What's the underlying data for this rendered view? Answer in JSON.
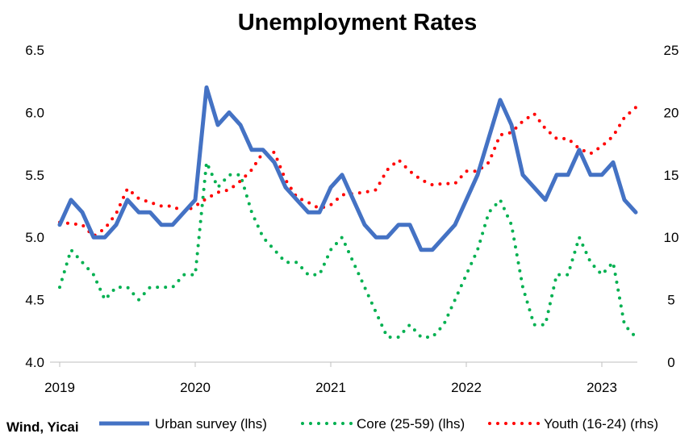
{
  "chart_data": {
    "type": "line",
    "title": "Unemployment Rates",
    "source": "Wind, Yicai",
    "x_tick_labels": [
      "2019",
      "2020",
      "2021",
      "2022",
      "2023"
    ],
    "y_left": {
      "min": 4.0,
      "max": 6.5,
      "ticks": [
        "4.0",
        "4.5",
        "5.0",
        "5.5",
        "6.0",
        "6.5"
      ]
    },
    "y_right": {
      "min": 0,
      "max": 25,
      "ticks": [
        "0",
        "5",
        "10",
        "15",
        "20",
        "25"
      ]
    },
    "grid": false,
    "legend_position": "bottom",
    "colors": {
      "urban": "#4472C4",
      "core": "#00B050",
      "youth": "#FF0000"
    },
    "x_start": "2019-01",
    "series": [
      {
        "name": "Urban survey (lhs)",
        "axis": "left",
        "style": "solid",
        "values": [
          5.1,
          5.3,
          5.2,
          5.0,
          5.0,
          5.1,
          5.3,
          5.2,
          5.2,
          5.1,
          5.1,
          5.2,
          5.3,
          6.2,
          5.9,
          6.0,
          5.9,
          5.7,
          5.7,
          5.6,
          5.4,
          5.3,
          5.2,
          5.2,
          5.4,
          5.5,
          5.3,
          5.1,
          5.0,
          5.0,
          5.1,
          5.1,
          4.9,
          4.9,
          5.0,
          5.1,
          5.3,
          5.5,
          5.8,
          6.1,
          5.9,
          5.5,
          5.4,
          5.3,
          5.5,
          5.5,
          5.7,
          5.5,
          5.5,
          5.6,
          5.3,
          5.2
        ]
      },
      {
        "name": "Core (25-59) (lhs)",
        "axis": "left",
        "style": "dotted",
        "values": [
          4.6,
          4.9,
          4.8,
          4.7,
          4.5,
          4.6,
          4.6,
          4.5,
          4.6,
          4.6,
          4.6,
          4.7,
          4.7,
          5.6,
          5.4,
          5.5,
          5.5,
          5.2,
          5.0,
          4.9,
          4.8,
          4.8,
          4.7,
          4.7,
          4.9,
          5.0,
          4.8,
          4.6,
          4.4,
          4.2,
          4.2,
          4.3,
          4.2,
          4.2,
          4.3,
          4.5,
          4.7,
          4.9,
          5.2,
          5.3,
          5.1,
          4.6,
          4.3,
          4.3,
          4.7,
          4.7,
          5.0,
          4.8,
          4.7,
          4.8,
          4.3,
          4.2
        ]
      },
      {
        "name": "Youth (16-24) (rhs)",
        "axis": "right",
        "style": "dotted",
        "values": [
          11.2,
          11.1,
          11.0,
          10.1,
          10.7,
          11.9,
          13.9,
          13.1,
          12.8,
          12.5,
          12.5,
          12.0,
          12.5,
          13.1,
          13.6,
          13.8,
          14.5,
          15.4,
          16.8,
          16.8,
          14.6,
          13.2,
          12.8,
          12.3,
          12.6,
          13.4,
          13.5,
          13.6,
          13.8,
          15.4,
          16.2,
          15.3,
          14.6,
          14.2,
          14.3,
          14.3,
          15.3,
          15.3,
          16.0,
          18.2,
          18.4,
          19.3,
          19.9,
          18.7,
          17.9,
          17.9,
          17.1,
          16.7,
          17.3,
          18.1,
          19.6,
          20.4
        ]
      }
    ]
  }
}
